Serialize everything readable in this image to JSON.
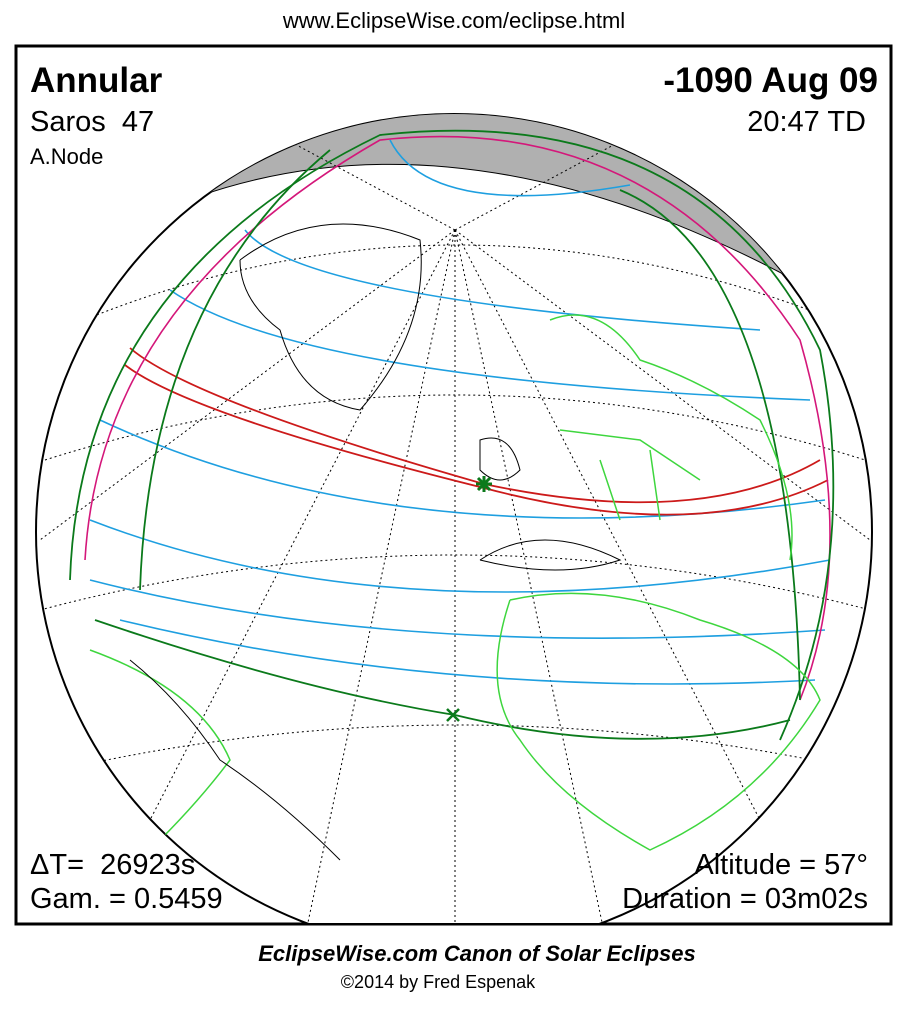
{
  "header": {
    "url": "www.EclipseWise.com/eclipse.html"
  },
  "panel": {
    "eclipse_type": "Annular",
    "date": "-1090 Aug 09",
    "saros": "Saros  47",
    "time": "20:47 TD",
    "node": "A.Node",
    "delta_t": "ΔT=  26923s",
    "gamma": "Gam. = 0.5459",
    "altitude": "Altitude = 57°",
    "duration": "Duration = 03m02s"
  },
  "footer": {
    "title": "EclipseWise.com Canon of Solar Eclipses",
    "credit": "©2014 by Fred Espenak"
  }
}
